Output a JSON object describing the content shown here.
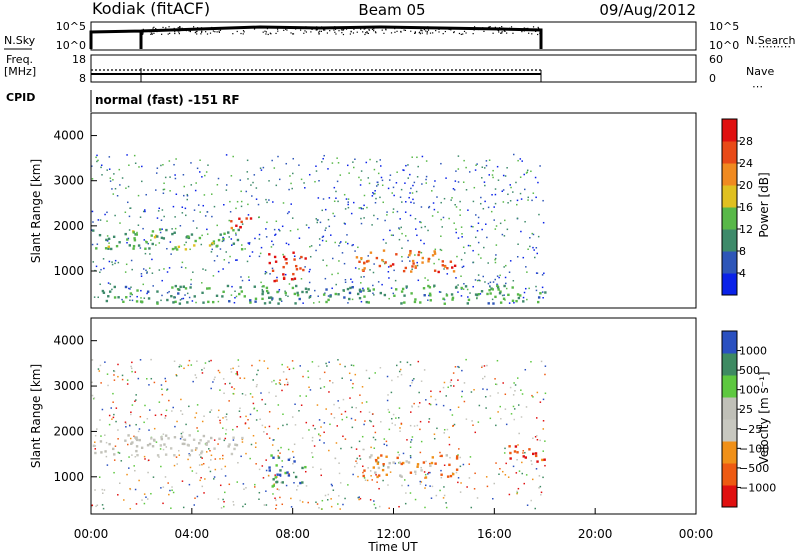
{
  "header": {
    "station": "Kodiak (fitACF)",
    "beam": "Beam 05",
    "date": "09/Aug/2012"
  },
  "panel_labels": {
    "nsky": "N.Sky",
    "nsky_ticks": [
      "10^5",
      "10^0"
    ],
    "nsearch": "N.Search",
    "nsearch_ticks": [
      "10^5",
      "10^0"
    ],
    "freq_l1": "Freq.",
    "freq_l2": "[MHz]",
    "freq_ticks": [
      "18",
      "8"
    ],
    "nave": "Nave",
    "nave_ticks": [
      "60",
      "0"
    ],
    "cpid": "CPID",
    "cpid_value": "normal (fast) -151 RF"
  },
  "colors": {
    "power_scale": [
      "#0a22e8",
      "#2e56b8",
      "#3e8a6a",
      "#58b848",
      "#e0c020",
      "#f08a20",
      "#e84a18",
      "#e01010"
    ],
    "velocity_scale": [
      "#e01010",
      "#ee5a12",
      "#f09018",
      "#c8c8c0",
      "#c0c0b8",
      "#5ec840",
      "#3e8a62",
      "#2a50c0"
    ]
  },
  "chart_data": [
    {
      "type": "heatmap",
      "title": "Power",
      "ylabel": "Slant Range [km]",
      "xlabel": "Time UT",
      "ylim": [
        180,
        4500
      ],
      "xlim": [
        "00:00",
        "24:00"
      ],
      "yticks": [
        "1000",
        "2000",
        "3000",
        "4000"
      ],
      "xticks": [
        "00:00",
        "04:00",
        "08:00",
        "12:00",
        "16:00",
        "20:00",
        "00:00"
      ],
      "colorbar_label": "Power [dB]",
      "colorbar_ticks": [
        "28",
        "24",
        "20",
        "16",
        "12",
        "8",
        "4"
      ],
      "features": [
        {
          "time_range": [
            "00:00",
            "06:00"
          ],
          "range_km": [
            1500,
            1950
          ],
          "level_db": 10
        },
        {
          "time_range": [
            "05:30",
            "06:45"
          ],
          "range_km": [
            1900,
            2200
          ],
          "level_db": 24
        },
        {
          "time_range": [
            "07:00",
            "08:30"
          ],
          "range_km": [
            800,
            1500
          ],
          "level_db": 26
        },
        {
          "time_range": [
            "10:30",
            "14:30"
          ],
          "range_km": [
            1000,
            1500
          ],
          "level_db": 22
        },
        {
          "time_range": [
            "00:00",
            "18:00"
          ],
          "range_km": [
            300,
            700
          ],
          "level_db": 9
        }
      ],
      "grid": false
    },
    {
      "type": "heatmap",
      "title": "Velocity",
      "ylabel": "Slant Range [km]",
      "xlabel": "Time UT",
      "ylim": [
        180,
        4500
      ],
      "xlim": [
        "00:00",
        "24:00"
      ],
      "yticks": [
        "1000",
        "2000",
        "3000",
        "4000"
      ],
      "xticks": [
        "00:00",
        "04:00",
        "08:00",
        "12:00",
        "16:00",
        "20:00",
        "00:00"
      ],
      "colorbar_label": "Velocity [m s⁻¹]",
      "colorbar_ticks": [
        "1000",
        "500",
        "100",
        "25",
        "−25",
        "−100",
        "−500",
        "−1000"
      ],
      "features": [
        {
          "time_range": [
            "00:00",
            "06:00"
          ],
          "range_km": [
            1500,
            1950
          ],
          "velocity": 0
        },
        {
          "time_range": [
            "07:00",
            "08:30"
          ],
          "range_km": [
            800,
            1500
          ],
          "velocity": 300
        },
        {
          "time_range": [
            "10:30",
            "14:30"
          ],
          "range_km": [
            1000,
            1500
          ],
          "velocity": -80
        },
        {
          "time_range": [
            "16:30",
            "18:00"
          ],
          "range_km": [
            1300,
            1700
          ],
          "velocity": -300
        }
      ],
      "grid": false
    }
  ],
  "time_axis_title": "Time UT"
}
